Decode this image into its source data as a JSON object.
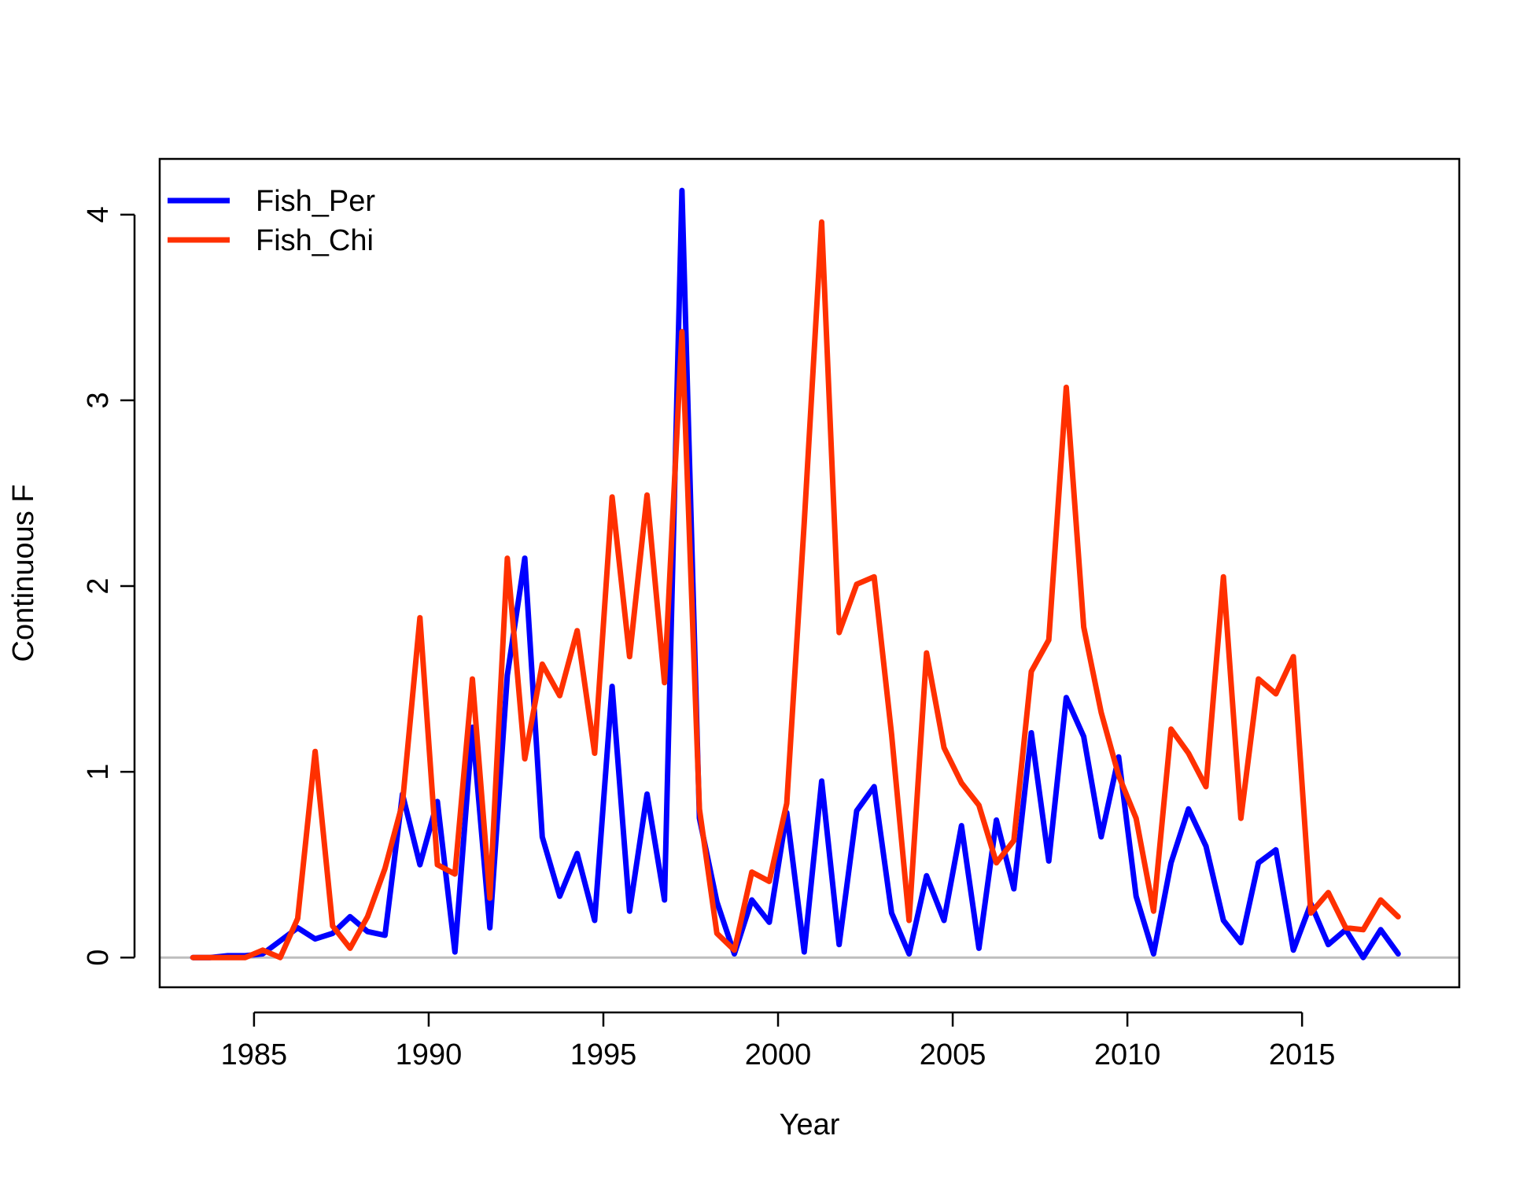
{
  "chart_data": {
    "type": "line",
    "xlabel": "Year",
    "ylabel": "Continuous F",
    "xlim": [
      1982.3,
      2019.5
    ],
    "ylim": [
      -0.16,
      4.3
    ],
    "xticks": [
      1985,
      1990,
      1995,
      2000,
      2005,
      2010,
      2015
    ],
    "yticks": [
      0,
      1,
      2,
      3,
      4
    ],
    "reference_line": {
      "y": 0,
      "color": "#bebebe"
    },
    "legend_position": "top-left",
    "grid": false,
    "series": [
      {
        "name": "Fish_Per",
        "color": "#0000ff",
        "x": [
          1983.25,
          1983.75,
          1984.25,
          1984.75,
          1985.25,
          1985.75,
          1986.25,
          1986.75,
          1987.25,
          1987.75,
          1988.25,
          1988.75,
          1989.25,
          1989.75,
          1990.25,
          1990.75,
          1991.25,
          1991.75,
          1992.25,
          1992.75,
          1993.25,
          1993.75,
          1994.25,
          1994.75,
          1995.25,
          1995.75,
          1996.25,
          1996.75,
          1997.25,
          1997.75,
          1998.25,
          1998.75,
          1999.25,
          1999.75,
          2000.25,
          2000.75,
          2001.25,
          2001.75,
          2002.25,
          2002.75,
          2003.25,
          2003.75,
          2004.25,
          2004.75,
          2005.25,
          2005.75,
          2006.25,
          2006.75,
          2007.25,
          2007.75,
          2008.25,
          2008.75,
          2009.25,
          2009.75,
          2010.25,
          2010.75,
          2011.25,
          2011.75,
          2012.25,
          2012.75,
          2013.25,
          2013.75,
          2014.25,
          2014.75,
          2015.25,
          2015.75,
          2016.25,
          2016.75,
          2017.25,
          2017.75
        ],
        "values": [
          0.0,
          0.0,
          0.01,
          0.01,
          0.02,
          0.09,
          0.16,
          0.1,
          0.13,
          0.22,
          0.14,
          0.12,
          0.88,
          0.5,
          0.84,
          0.03,
          1.24,
          0.16,
          1.52,
          2.15,
          0.65,
          0.33,
          0.56,
          0.2,
          1.46,
          0.25,
          0.88,
          0.31,
          4.13,
          0.75,
          0.3,
          0.02,
          0.31,
          0.19,
          0.78,
          0.03,
          0.95,
          0.07,
          0.79,
          0.92,
          0.24,
          0.02,
          0.44,
          0.2,
          0.71,
          0.05,
          0.74,
          0.37,
          1.21,
          0.52,
          1.4,
          1.19,
          0.65,
          1.08,
          0.33,
          0.02,
          0.51,
          0.8,
          0.6,
          0.2,
          0.08,
          0.51,
          0.58,
          0.04,
          0.29,
          0.07,
          0.15,
          0.0,
          0.15,
          0.02
        ]
      },
      {
        "name": "Fish_Chi",
        "color": "#ff3000",
        "x": [
          1983.25,
          1983.75,
          1984.25,
          1984.75,
          1985.25,
          1985.75,
          1986.25,
          1986.75,
          1987.25,
          1987.75,
          1988.25,
          1988.75,
          1989.25,
          1989.75,
          1990.25,
          1990.75,
          1991.25,
          1991.75,
          1992.25,
          1992.75,
          1993.25,
          1993.75,
          1994.25,
          1994.75,
          1995.25,
          1995.75,
          1996.25,
          1996.75,
          1997.25,
          1997.75,
          1998.25,
          1998.75,
          1999.25,
          1999.75,
          2000.25,
          2000.75,
          2001.25,
          2001.75,
          2002.25,
          2002.75,
          2003.25,
          2003.75,
          2004.25,
          2004.75,
          2005.25,
          2005.75,
          2006.25,
          2006.75,
          2007.25,
          2007.75,
          2008.25,
          2008.75,
          2009.25,
          2009.75,
          2010.25,
          2010.75,
          2011.25,
          2011.75,
          2012.25,
          2012.75,
          2013.25,
          2013.75,
          2014.25,
          2014.75,
          2015.25,
          2015.75,
          2016.25,
          2016.75,
          2017.25,
          2017.75
        ],
        "values": [
          0.0,
          0.0,
          0.0,
          0.0,
          0.04,
          0.0,
          0.21,
          1.11,
          0.17,
          0.05,
          0.22,
          0.48,
          0.83,
          1.83,
          0.5,
          0.45,
          1.5,
          0.32,
          2.15,
          1.07,
          1.58,
          1.41,
          1.76,
          1.1,
          2.48,
          1.62,
          2.49,
          1.48,
          3.37,
          0.8,
          0.13,
          0.04,
          0.46,
          0.41,
          0.83,
          2.34,
          3.96,
          1.75,
          2.01,
          2.05,
          1.2,
          0.2,
          1.64,
          1.13,
          0.94,
          0.82,
          0.51,
          0.63,
          1.54,
          1.71,
          3.07,
          1.78,
          1.32,
          0.98,
          0.75,
          0.25,
          1.23,
          1.1,
          0.92,
          2.05,
          0.75,
          1.5,
          1.42,
          1.62,
          0.24,
          0.35,
          0.16,
          0.15,
          0.31,
          0.22
        ]
      }
    ]
  }
}
